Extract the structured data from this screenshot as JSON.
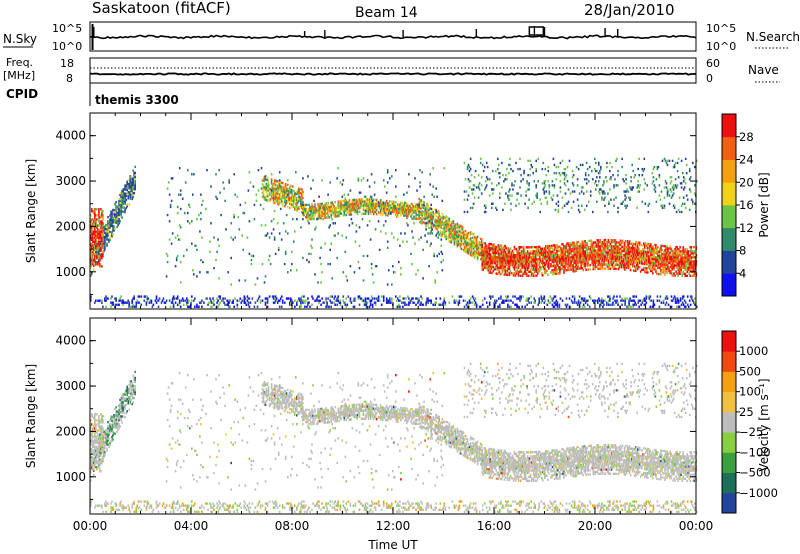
{
  "header": {
    "station": "Saskatoon (fitACF)",
    "beam": "Beam 14",
    "date": "28/Jan/2010"
  },
  "top_panels": {
    "nsky": {
      "left_label": "N.Sky",
      "right_label": "N.Search",
      "left_ticks": [
        "10^5",
        "10^0"
      ],
      "right_ticks": [
        "10^5",
        "10^0"
      ]
    },
    "freq": {
      "left_label_1": "Freq.",
      "left_label_2": "[MHz]",
      "right_label": "Nave",
      "left_ticks": [
        "18",
        "8"
      ],
      "right_ticks": [
        "60",
        "0"
      ]
    },
    "cpid_label": "CPID",
    "cpid_value": "themis 3300"
  },
  "colors": {
    "power_scale": [
      "#1010ee",
      "#22449a",
      "#2e8a6a",
      "#6bc443",
      "#f0d21a",
      "#f5a010",
      "#f06010",
      "#ee1010"
    ],
    "velocity_scale": [
      "#ee1010",
      "#f04a10",
      "#f5a010",
      "#f0c040",
      "#bdbdbd",
      "#88d040",
      "#3aa040",
      "#1e6f5a",
      "#22449a"
    ]
  },
  "chart_data": [
    {
      "type": "heatmap",
      "name": "power",
      "xlabel": "",
      "ylabel": "Slant Range [km]",
      "xlim": [
        0,
        24
      ],
      "ylim": [
        180,
        4500
      ],
      "yticks": [
        "1000",
        "2000",
        "3000",
        "4000"
      ],
      "colorbar_label": "Power [dB]",
      "colorbar_ticks": [
        "4",
        "8",
        "12",
        "16",
        "20",
        "24",
        "28"
      ],
      "colorbar_range": [
        0,
        32
      ]
    },
    {
      "type": "heatmap",
      "name": "velocity",
      "xlabel": "Time UT",
      "ylabel": "Slant Range [km]",
      "xlim": [
        0,
        24
      ],
      "ylim": [
        180,
        4500
      ],
      "xticks": [
        "00:00",
        "04:00",
        "08:00",
        "12:00",
        "16:00",
        "20:00",
        "00:00"
      ],
      "yticks": [
        "1000",
        "2000",
        "3000",
        "4000"
      ],
      "colorbar_label": "Velocity [m s⁻¹]",
      "colorbar_ticks": [
        "1000",
        "500",
        "100",
        "25",
        "−25",
        "−100",
        "−500",
        "−1000"
      ],
      "colorbar_range": [
        -1200,
        1200
      ]
    }
  ]
}
